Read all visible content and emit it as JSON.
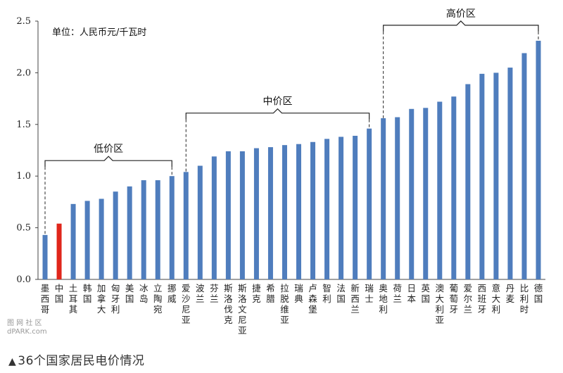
{
  "chart_data": {
    "type": "bar",
    "unit_note": "单位：人民币元/千瓦时",
    "yticks": [
      "0.0",
      "0.5",
      "1.0",
      "1.5",
      "2.0",
      "2.5"
    ],
    "ylim": [
      0,
      2.5
    ],
    "grid": false,
    "categories": [
      "墨西哥",
      "中国",
      "土耳其",
      "韩国",
      "加拿大",
      "匈牙利",
      "美国",
      "冰岛",
      "立陶宛",
      "挪威",
      "爱沙尼亚",
      "波兰",
      "芬兰",
      "斯洛伐克",
      "斯洛文尼亚",
      "捷克",
      "希腊",
      "拉脱维亚",
      "瑞典",
      "卢森堡",
      "智利",
      "法国",
      "新西兰",
      "瑞士",
      "奥地利",
      "荷兰",
      "日本",
      "英国",
      "澳大利亚",
      "葡萄牙",
      "爱尔兰",
      "西班牙",
      "意大利",
      "丹麦",
      "比利时",
      "德国"
    ],
    "values": [
      0.43,
      0.54,
      0.73,
      0.76,
      0.78,
      0.85,
      0.9,
      0.96,
      0.96,
      1.0,
      1.04,
      1.1,
      1.19,
      1.24,
      1.24,
      1.27,
      1.28,
      1.3,
      1.31,
      1.33,
      1.36,
      1.38,
      1.39,
      1.46,
      1.56,
      1.57,
      1.65,
      1.66,
      1.72,
      1.77,
      1.89,
      1.99,
      2.0,
      2.05,
      2.19,
      2.31
    ],
    "highlight_index": 1,
    "bar_color": "#4f7dbd",
    "highlight_color": "#e0261b",
    "regions": [
      {
        "label": "低价区",
        "start": 0,
        "end": 9
      },
      {
        "label": "中价区",
        "start": 10,
        "end": 23
      },
      {
        "label": "高价区",
        "start": 24,
        "end": 35
      }
    ]
  },
  "caption": {
    "marker": "▲",
    "text": "36个国家居民电价情况"
  },
  "watermark": {
    "line1": "图 网 社 区",
    "line2": "dPARK.com"
  }
}
